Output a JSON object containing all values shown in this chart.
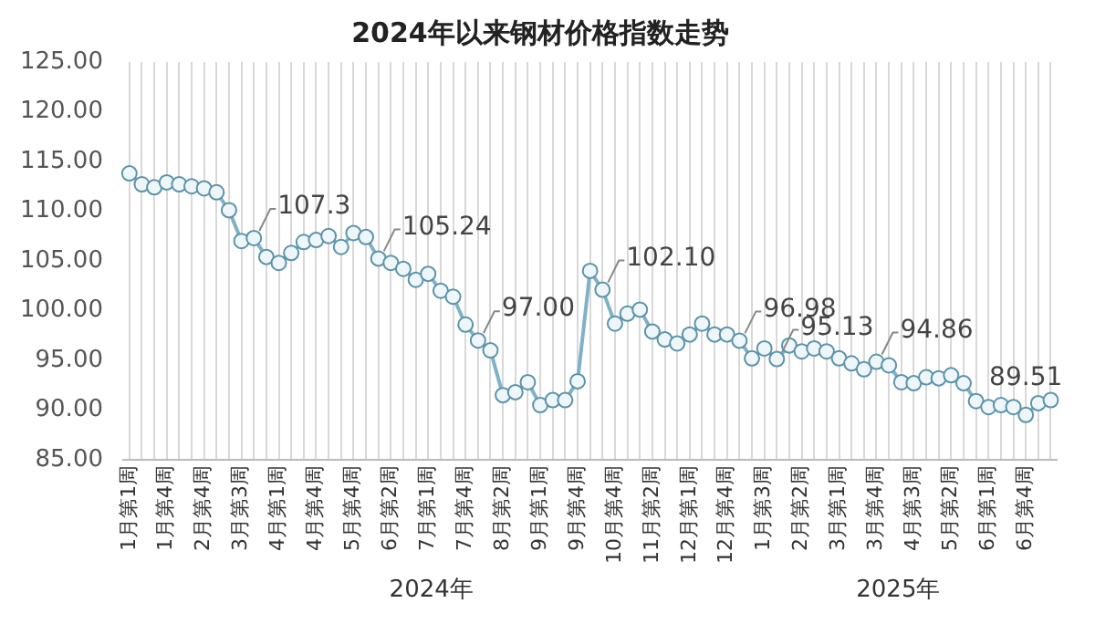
{
  "chart_data": {
    "type": "line",
    "title": "2024年以来钢材价格指数走势",
    "categories": [
      "1月第1周",
      null,
      null,
      "1月第4周",
      null,
      null,
      "2月第4周",
      null,
      null,
      "3月第3周",
      null,
      null,
      "4月第1周",
      null,
      null,
      "4月第4周",
      null,
      null,
      "5月第4周",
      null,
      null,
      "6月第2周",
      null,
      null,
      "7月第1周",
      null,
      null,
      "7月第4周",
      null,
      null,
      "8月第2周",
      null,
      null,
      "9月第1周",
      null,
      null,
      "9月第4周",
      null,
      null,
      "10月第4周",
      null,
      null,
      "11月第2周",
      null,
      null,
      "12月第1周",
      null,
      null,
      "12月第4周",
      null,
      null,
      "1月第3周",
      null,
      null,
      "2月第2周",
      null,
      null,
      "3月第1周",
      null,
      null,
      "3月第4周",
      null,
      null,
      "4月第3周",
      null,
      null,
      "5月第2周",
      null,
      null,
      "6月第1周",
      null,
      null,
      "6月第4周",
      null,
      null
    ],
    "series": [
      {
        "color": "#7fb2c8",
        "values": [
          113.8,
          112.7,
          112.4,
          112.9,
          112.7,
          112.5,
          112.3,
          111.9,
          110.1,
          107.0,
          107.3,
          105.4,
          104.8,
          105.8,
          106.9,
          107.1,
          107.5,
          106.4,
          107.8,
          107.4,
          105.24,
          104.8,
          104.2,
          103.1,
          103.7,
          102.0,
          101.4,
          98.6,
          97.0,
          96.0,
          91.5,
          91.8,
          92.8,
          90.5,
          91.0,
          91.0,
          92.9,
          104.0,
          102.1,
          98.7,
          99.7,
          100.1,
          97.9,
          97.1,
          96.7,
          97.6,
          98.7,
          97.6,
          97.6,
          96.98,
          95.2,
          96.2,
          95.13,
          96.5,
          95.9,
          96.2,
          95.9,
          95.2,
          94.7,
          94.1,
          94.86,
          94.5,
          92.8,
          92.7,
          93.3,
          93.2,
          93.5,
          92.7,
          90.9,
          90.3,
          90.5,
          90.3,
          89.51,
          90.7,
          91.0
        ],
        "value_labels": [
          null,
          null,
          null,
          null,
          null,
          null,
          null,
          null,
          null,
          null,
          "107.3",
          null,
          null,
          null,
          null,
          null,
          null,
          null,
          null,
          null,
          "105.24",
          null,
          null,
          null,
          null,
          null,
          null,
          null,
          "97.00",
          null,
          null,
          null,
          null,
          null,
          null,
          null,
          null,
          null,
          "102.10",
          null,
          null,
          null,
          null,
          null,
          null,
          null,
          null,
          null,
          null,
          "96.98",
          null,
          null,
          "95.13",
          null,
          null,
          null,
          null,
          null,
          null,
          null,
          "94.86",
          null,
          null,
          null,
          null,
          null,
          null,
          null,
          null,
          null,
          null,
          null,
          "89.51",
          null,
          null
        ]
      }
    ],
    "ylim": [
      85,
      125
    ],
    "yticks": [
      {
        "value": 85,
        "label": "85.00"
      },
      {
        "value": 90,
        "label": "90.00"
      },
      {
        "value": 95,
        "label": "95.00"
      },
      {
        "value": 100,
        "label": "100.00"
      },
      {
        "value": 105,
        "label": "105.00"
      },
      {
        "value": 110,
        "label": "110.00"
      },
      {
        "value": 115,
        "label": "115.00"
      },
      {
        "value": 120,
        "label": "120.00"
      },
      {
        "value": 125,
        "label": "125.00"
      }
    ],
    "annotations": [
      "2024年",
      "2025年"
    ],
    "marker": "circle",
    "line_style": "solid",
    "grid": "x",
    "legend": false
  }
}
